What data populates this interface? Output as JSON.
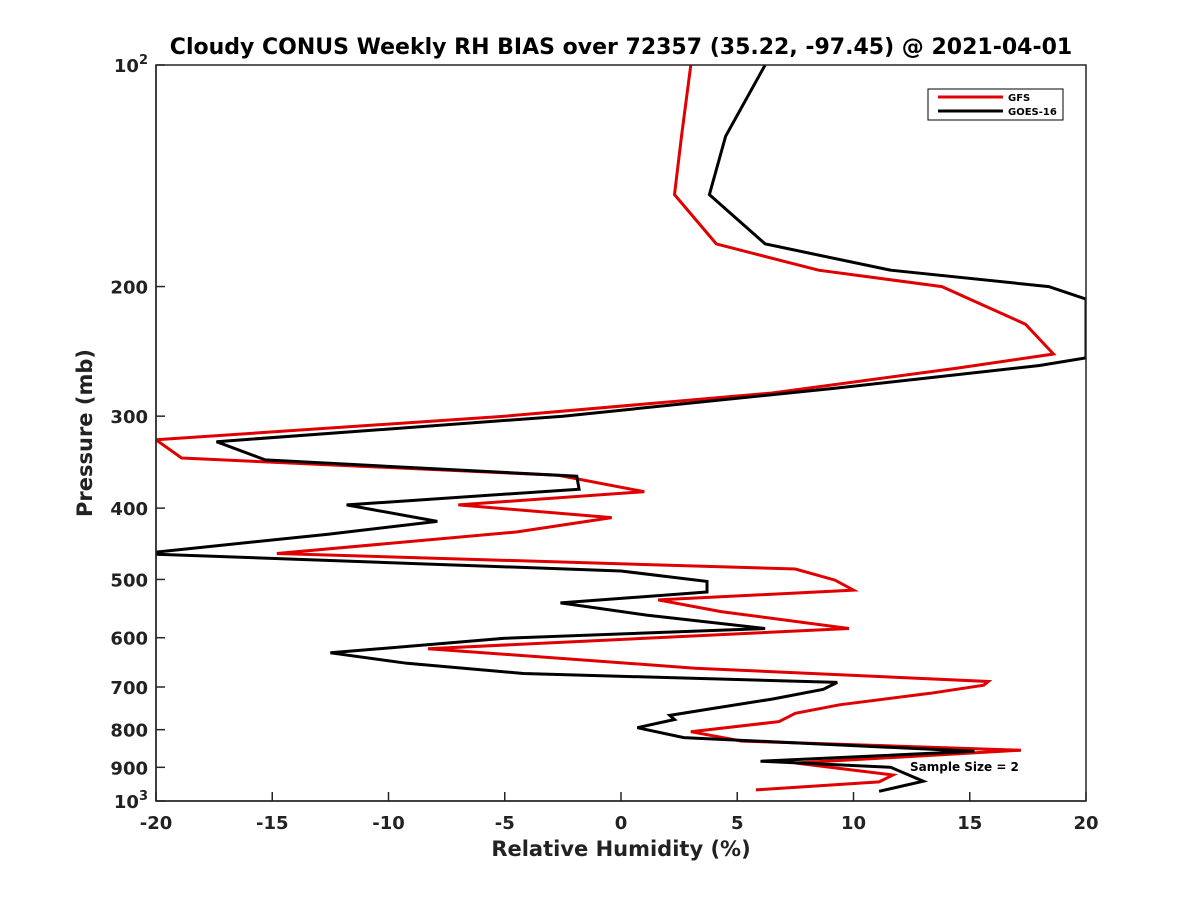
{
  "chart_data": {
    "type": "line",
    "title": "Cloudy CONUS Weekly RH BIAS over 72357 (35.22, -97.45) @ 2021-04-01",
    "xlabel": "Relative Humidity (%)",
    "ylabel": "Pressure (mb)",
    "xlim": [
      -20,
      20
    ],
    "ylim": [
      100,
      1000
    ],
    "y_scale": "log",
    "y_reversed": true,
    "grid": false,
    "legend_position": "top-right",
    "x_ticks": [
      "-20",
      "-15",
      "-10",
      "-5",
      "0",
      "5",
      "10",
      "15",
      "20"
    ],
    "y_ticks": [
      {
        "value": 100,
        "base": "10",
        "exp": "2"
      },
      {
        "value": 200,
        "label": "200"
      },
      {
        "value": 300,
        "label": "300"
      },
      {
        "value": 400,
        "label": "400"
      },
      {
        "value": 500,
        "label": "500"
      },
      {
        "value": 600,
        "label": "600"
      },
      {
        "value": 700,
        "label": "700"
      },
      {
        "value": 800,
        "label": "800"
      },
      {
        "value": 900,
        "label": "900"
      },
      {
        "value": 1000,
        "base": "10",
        "exp": "3"
      }
    ],
    "annotation": "Sample Size = 2",
    "series": [
      {
        "name": "GFS",
        "color": "#e00000",
        "points": [
          [
            3.0,
            100
          ],
          [
            2.6,
            125
          ],
          [
            2.3,
            150
          ],
          [
            4.1,
            175
          ],
          [
            8.5,
            190
          ],
          [
            13.8,
            200
          ],
          [
            17.4,
            225
          ],
          [
            18.6,
            247
          ],
          [
            14.5,
            258
          ],
          [
            6.5,
            279
          ],
          [
            -5.0,
            300
          ],
          [
            -20.0,
            323
          ],
          [
            -18.9,
            342
          ],
          [
            -2.7,
            361
          ],
          [
            1.0,
            380
          ],
          [
            -7.0,
            396
          ],
          [
            -0.4,
            412
          ],
          [
            -4.5,
            431
          ],
          [
            -14.8,
            461
          ],
          [
            7.5,
            484
          ],
          [
            9.2,
            501
          ],
          [
            10.0,
            517
          ],
          [
            1.6,
            533
          ],
          [
            4.3,
            553
          ],
          [
            9.8,
            583
          ],
          [
            -8.3,
            621
          ],
          [
            3.2,
            660
          ],
          [
            15.8,
            688
          ],
          [
            15.6,
            696
          ],
          [
            13.3,
            714
          ],
          [
            9.4,
            740
          ],
          [
            7.5,
            760
          ],
          [
            6.8,
            780
          ],
          [
            3.0,
            805
          ],
          [
            5.2,
            829
          ],
          [
            17.2,
            853
          ],
          [
            7.5,
            888
          ],
          [
            11.7,
            922
          ],
          [
            11.1,
            942
          ],
          [
            5.8,
            966
          ]
        ]
      },
      {
        "name": "GOES-16",
        "color": "#000000",
        "points": [
          [
            6.2,
            100
          ],
          [
            4.5,
            125
          ],
          [
            3.8,
            150
          ],
          [
            6.2,
            175
          ],
          [
            11.6,
            190
          ],
          [
            18.4,
            200
          ],
          [
            20.0,
            208
          ],
          [
            20.0,
            250
          ],
          [
            18.0,
            256
          ],
          [
            9.2,
            275
          ],
          [
            -2.5,
            300
          ],
          [
            -17.4,
            325
          ],
          [
            -15.3,
            344
          ],
          [
            -1.9,
            362
          ],
          [
            -1.8,
            377
          ],
          [
            -11.8,
            396
          ],
          [
            -7.9,
            417
          ],
          [
            -12.6,
            434
          ],
          [
            -20.0,
            459
          ],
          [
            -20.0,
            462
          ],
          [
            0.0,
            487
          ],
          [
            3.7,
            503
          ],
          [
            3.7,
            520
          ],
          [
            -2.6,
            538
          ],
          [
            1.1,
            559
          ],
          [
            6.2,
            583
          ],
          [
            -5.0,
            601
          ],
          [
            -12.5,
            629
          ],
          [
            -9.2,
            650
          ],
          [
            -4.2,
            671
          ],
          [
            9.3,
            690
          ],
          [
            8.7,
            705
          ],
          [
            6.5,
            727
          ],
          [
            3.8,
            750
          ],
          [
            2.1,
            765
          ],
          [
            2.3,
            775
          ],
          [
            0.7,
            795
          ],
          [
            2.7,
            820
          ],
          [
            15.2,
            856
          ],
          [
            6.0,
            883
          ],
          [
            11.6,
            900
          ],
          [
            13.0,
            940
          ],
          [
            11.1,
            970
          ]
        ]
      }
    ]
  }
}
